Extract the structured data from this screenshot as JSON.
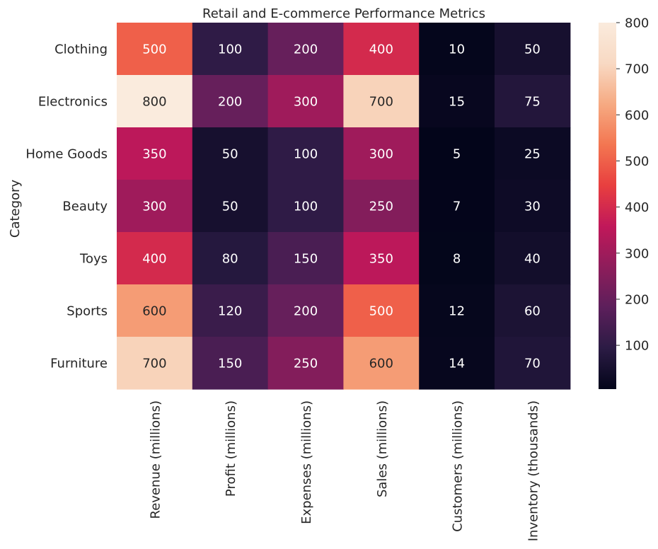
{
  "chart_data": {
    "type": "heatmap",
    "title": "Retail and E-commerce Performance Metrics",
    "xlabel": "",
    "ylabel": "Category",
    "columns": [
      "Revenue (millions)",
      "Profit (millions)",
      "Expenses (millions)",
      "Sales (millions)",
      "Customers (millions)",
      "Inventory (thousands)"
    ],
    "rows": [
      "Clothing",
      "Electronics",
      "Home Goods",
      "Beauty",
      "Toys",
      "Sports",
      "Furniture"
    ],
    "values": [
      [
        500,
        100,
        200,
        400,
        10,
        50
      ],
      [
        800,
        200,
        300,
        700,
        15,
        75
      ],
      [
        350,
        50,
        100,
        300,
        5,
        25
      ],
      [
        300,
        50,
        100,
        250,
        7,
        30
      ],
      [
        400,
        80,
        150,
        350,
        8,
        40
      ],
      [
        600,
        120,
        200,
        500,
        12,
        60
      ],
      [
        700,
        150,
        250,
        600,
        14,
        70
      ]
    ],
    "colorbar": {
      "min": 5,
      "max": 800,
      "ticks": [
        100,
        200,
        300,
        400,
        500,
        600,
        700,
        800
      ],
      "colormap": "rocket",
      "colormap_stops": [
        "#03051a",
        "#2b1b44",
        "#5c1f5b",
        "#8e1d5b",
        "#c1185a",
        "#e83f3f",
        "#f37651",
        "#f6aa82",
        "#f8d9c3",
        "#faebdd"
      ]
    },
    "annotations": true,
    "grid": false
  }
}
